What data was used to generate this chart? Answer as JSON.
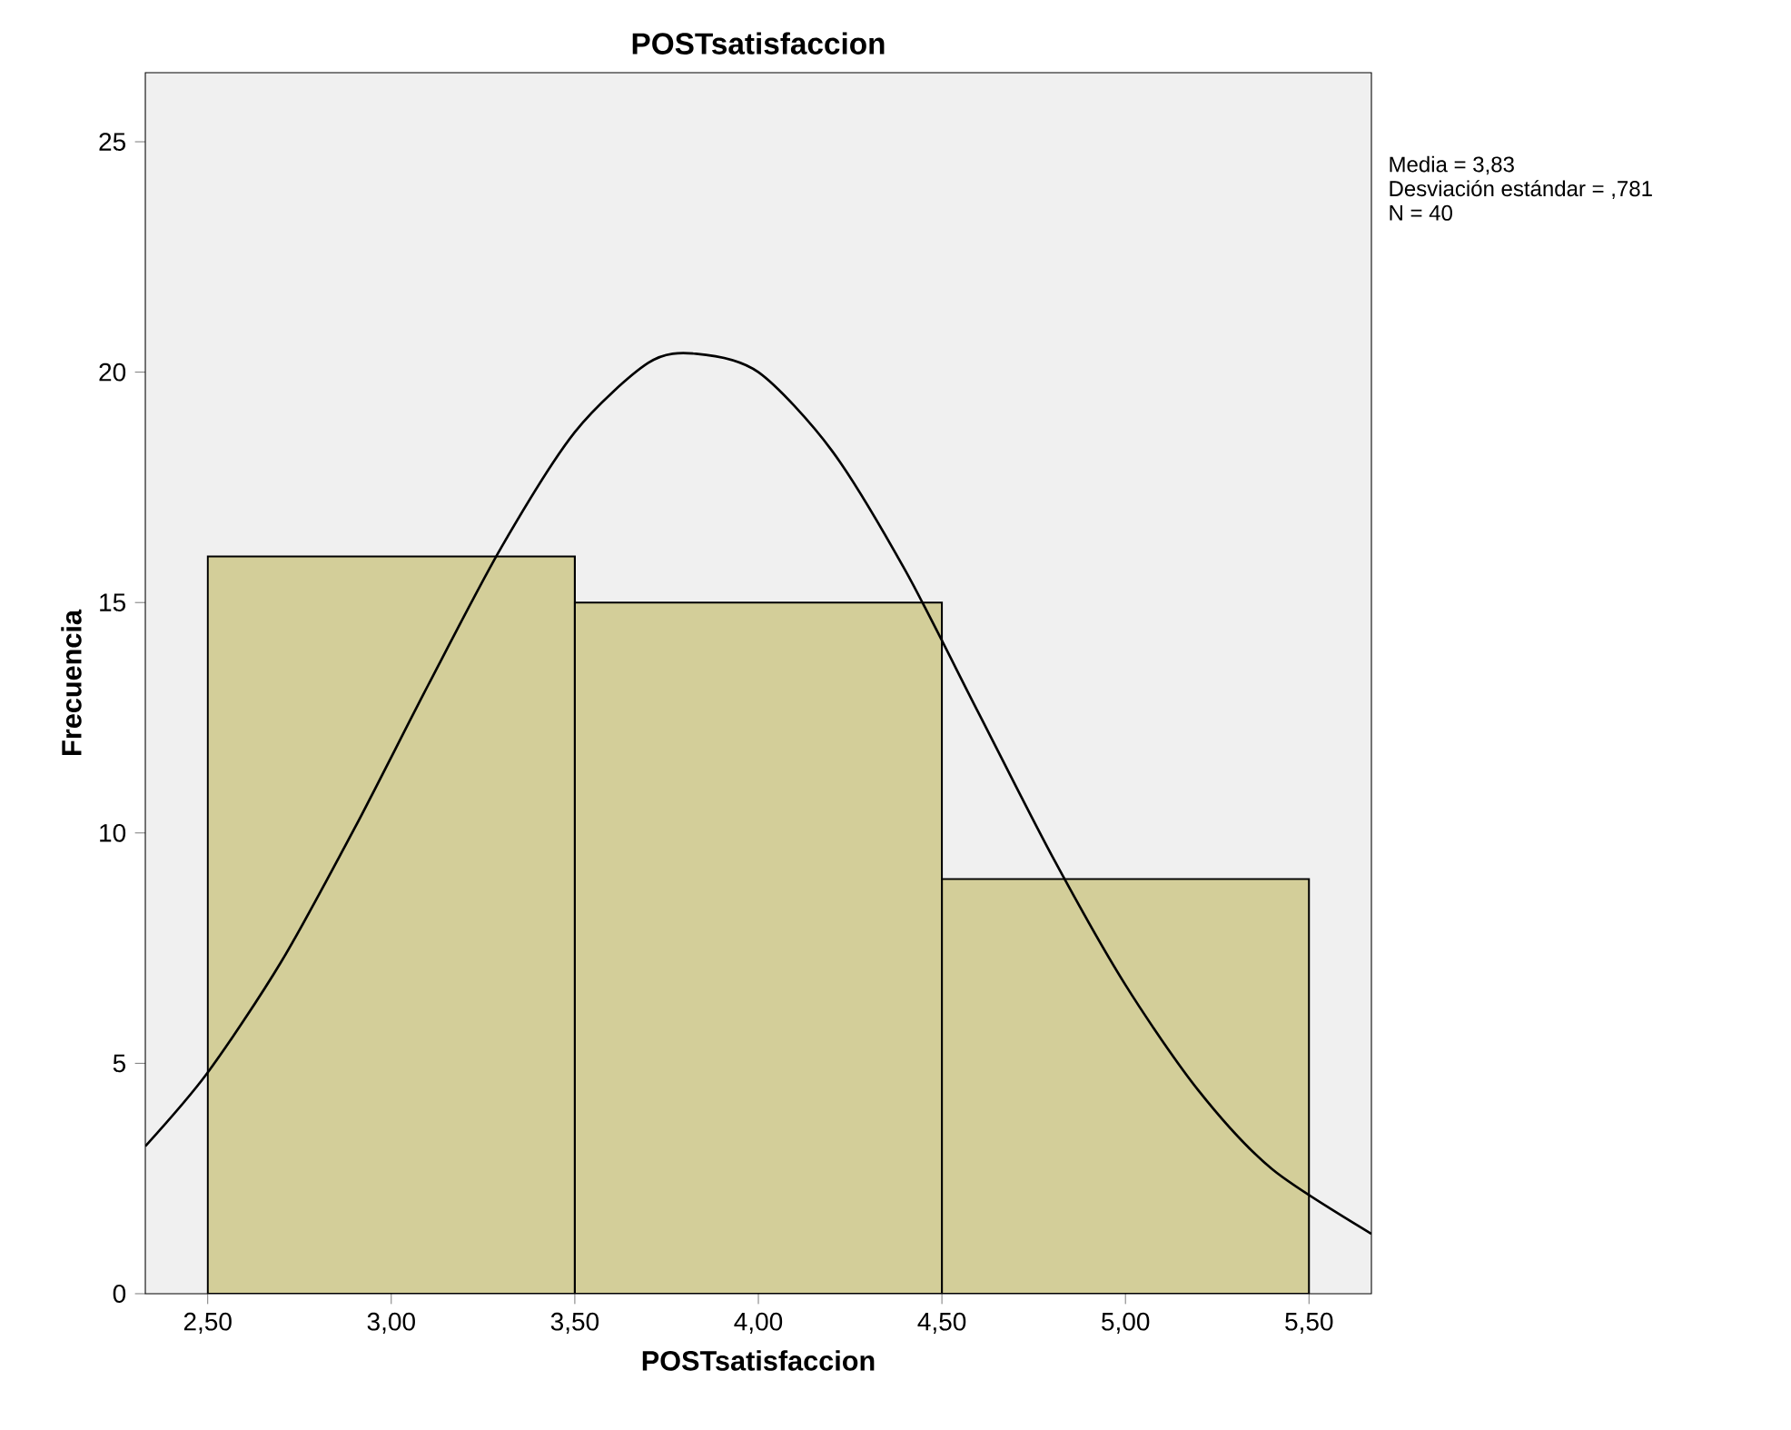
{
  "chart_data": {
    "type": "histogram",
    "title": "POSTsatisfaccion",
    "xlabel": "POSTsatisfaccion",
    "ylabel": "Frecuencia",
    "bins": [
      2.5,
      3.5,
      4.5,
      5.5
    ],
    "values": [
      16,
      15,
      9
    ],
    "color": "#d3ce99",
    "series": [
      {
        "type": "line",
        "color": "#000000",
        "x": [
          2.33,
          2.5,
          2.7,
          2.9,
          3.1,
          3.3,
          3.5,
          3.7,
          3.83,
          4.0,
          4.2,
          4.4,
          4.6,
          4.8,
          5.0,
          5.2,
          5.4,
          5.67
        ],
        "values": [
          3.2,
          4.8,
          7.2,
          10.1,
          13.2,
          16.2,
          18.7,
          20.2,
          20.4,
          20.0,
          18.3,
          15.7,
          12.6,
          9.5,
          6.7,
          4.4,
          2.7,
          1.3
        ]
      }
    ],
    "xlim": [
      2.33,
      5.67
    ],
    "ylim": [
      0,
      26.5
    ],
    "xticks": [
      {
        "value": 2.5,
        "label": "2,50"
      },
      {
        "value": 3.0,
        "label": "3,00"
      },
      {
        "value": 3.5,
        "label": "3,50"
      },
      {
        "value": 4.0,
        "label": "4,00"
      },
      {
        "value": 4.5,
        "label": "4,50"
      },
      {
        "value": 5.0,
        "label": "5,00"
      },
      {
        "value": 5.5,
        "label": "5,50"
      }
    ],
    "yticks": [
      0,
      5,
      10,
      15,
      20,
      25
    ],
    "annotations": [
      "Media = 3,83",
      "Desviación estándar = ,781",
      "N = 40"
    ]
  }
}
